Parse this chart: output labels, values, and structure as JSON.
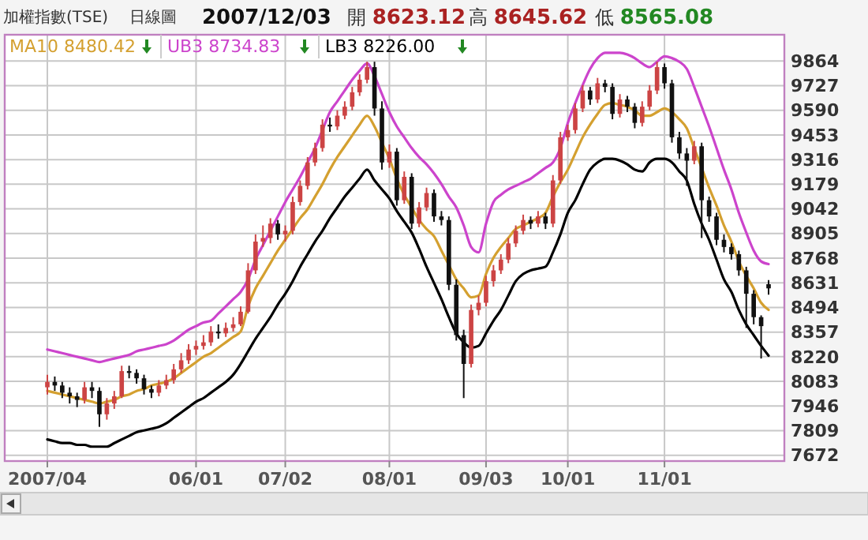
{
  "chart_data": {
    "type": "candlestick",
    "title": "加權指數(TSE)",
    "subtitle": "日線圖",
    "annotations": [
      "2007/12/03",
      "開 8623.12",
      "高 8645.62",
      "低 8565.08"
    ],
    "categories": [
      "2007/04",
      null,
      null,
      null,
      null,
      null,
      null,
      null,
      null,
      null,
      null,
      null,
      null,
      null,
      null,
      null,
      null,
      null,
      null,
      null,
      "06/01",
      null,
      null,
      null,
      null,
      null,
      null,
      null,
      null,
      null,
      null,
      null,
      "07/02",
      null,
      null,
      null,
      null,
      null,
      null,
      null,
      null,
      null,
      null,
      null,
      null,
      null,
      "08/01",
      null,
      null,
      null,
      null,
      null,
      null,
      null,
      null,
      null,
      null,
      null,
      null,
      "09/03",
      null,
      null,
      null,
      null,
      null,
      null,
      null,
      null,
      null,
      null,
      "10/01",
      null,
      null,
      null,
      null,
      null,
      null,
      null,
      null,
      null,
      null,
      null,
      null,
      "11/01",
      null,
      null,
      null,
      null,
      null,
      null,
      null,
      null,
      null,
      null,
      null,
      null,
      null,
      null
    ],
    "ylim": [
      7640,
      10010
    ],
    "yticks": [
      7672,
      7809,
      7946,
      8083,
      8220,
      8357,
      8494,
      8631,
      8768,
      8905,
      9042,
      9179,
      9316,
      9453,
      9590,
      9727,
      9864
    ],
    "grid": true,
    "legend": "top left",
    "series": [
      {
        "type": "line",
        "name": "UB3 8734.83",
        "color": "#cc44cc",
        "values": [
          8260,
          8250,
          8240,
          8230,
          8220,
          8210,
          8200,
          8190,
          8200,
          8210,
          8220,
          8230,
          8250,
          8260,
          8270,
          8280,
          8290,
          8310,
          8340,
          8370,
          8390,
          8410,
          8420,
          8460,
          8500,
          8540,
          8580,
          8650,
          8760,
          8840,
          8920,
          9000,
          9080,
          9150,
          9220,
          9300,
          9380,
          9480,
          9580,
          9640,
          9700,
          9760,
          9810,
          9850,
          9780,
          9680,
          9580,
          9500,
          9440,
          9380,
          9330,
          9290,
          9240,
          9180,
          9110,
          9050,
          8950,
          8830,
          8800,
          8960,
          9080,
          9120,
          9150,
          9170,
          9190,
          9210,
          9240,
          9270,
          9300,
          9380,
          9520,
          9630,
          9730,
          9820,
          9880,
          9910,
          9910,
          9910,
          9900,
          9880,
          9850,
          9830,
          9860,
          9890,
          9880,
          9860,
          9820,
          9720,
          9610,
          9500,
          9380,
          9260,
          9150,
          9020,
          8910,
          8810,
          8750,
          8734.83
        ]
      },
      {
        "type": "line",
        "name": "MA10 8480.42",
        "color": "#d4a030",
        "values": [
          8030,
          8020,
          8010,
          8000,
          7990,
          7980,
          7970,
          7960,
          7970,
          7980,
          8000,
          8010,
          8030,
          8040,
          8060,
          8070,
          8080,
          8100,
          8130,
          8160,
          8190,
          8220,
          8240,
          8270,
          8300,
          8330,
          8360,
          8500,
          8600,
          8670,
          8740,
          8810,
          8870,
          8930,
          8990,
          9040,
          9110,
          9180,
          9260,
          9330,
          9390,
          9450,
          9510,
          9560,
          9500,
          9410,
          9320,
          9210,
          9120,
          9050,
          8980,
          8930,
          8890,
          8810,
          8730,
          8650,
          8600,
          8550,
          8560,
          8680,
          8770,
          8830,
          8880,
          8930,
          8950,
          8970,
          8990,
          9020,
          9110,
          9190,
          9260,
          9350,
          9440,
          9510,
          9570,
          9620,
          9630,
          9620,
          9610,
          9590,
          9560,
          9560,
          9580,
          9600,
          9580,
          9540,
          9490,
          9380,
          9270,
          9160,
          9060,
          8950,
          8860,
          8750,
          8670,
          8600,
          8520,
          8480.42
        ]
      },
      {
        "type": "line",
        "name": "LB3 8226.00",
        "color": "#000000",
        "values": [
          7760,
          7750,
          7740,
          7740,
          7730,
          7730,
          7720,
          7720,
          7720,
          7740,
          7760,
          7780,
          7800,
          7810,
          7820,
          7830,
          7850,
          7880,
          7910,
          7940,
          7970,
          7990,
          8020,
          8050,
          8080,
          8120,
          8180,
          8250,
          8320,
          8380,
          8440,
          8510,
          8570,
          8640,
          8720,
          8790,
          8860,
          8920,
          8990,
          9050,
          9110,
          9160,
          9210,
          9260,
          9200,
          9150,
          9100,
          9030,
          8970,
          8910,
          8820,
          8720,
          8630,
          8540,
          8440,
          8350,
          8300,
          8270,
          8280,
          8350,
          8420,
          8480,
          8560,
          8640,
          8680,
          8700,
          8710,
          8720,
          8800,
          8900,
          9020,
          9090,
          9180,
          9260,
          9300,
          9320,
          9320,
          9310,
          9290,
          9260,
          9250,
          9300,
          9320,
          9320,
          9300,
          9250,
          9200,
          9070,
          8960,
          8870,
          8760,
          8650,
          8580,
          8480,
          8400,
          8340,
          8280,
          8226
        ]
      },
      {
        "colors": [
          "#cc4444",
          "#111111",
          "#111111",
          "#111111",
          "#111111",
          "#cc4444",
          "#111111",
          "#111111",
          "#cc4444",
          "#cc4444",
          "#cc4444",
          "#111111",
          "#111111",
          "#111111",
          "#111111",
          "#cc4444",
          "#cc4444",
          "#cc4444",
          "#cc4444",
          "#cc4444",
          "#cc4444",
          "#cc4444",
          "#cc4444",
          "#111111",
          "#cc4444",
          "#cc4444",
          "#cc4444",
          "#cc4444",
          "#cc4444",
          "#cc4444",
          "#cc4444",
          "#111111",
          "#cc4444",
          "#cc4444",
          "#cc4444",
          "#cc4444",
          "#cc4444",
          "#cc4444",
          "#111111",
          "#cc4444",
          "#cc4444",
          "#cc4444",
          "#cc4444",
          "#cc4444",
          "#111111",
          "#111111",
          "#cc4444",
          "#111111",
          "#cc4444",
          "#111111",
          "#cc4444",
          "#cc4444",
          "#111111",
          "#111111",
          "#111111",
          "#111111",
          "#111111",
          "#cc4444",
          "#cc4444",
          "#cc4444",
          "#cc4444",
          "#cc4444",
          "#cc4444",
          "#cc4444",
          "#cc4444",
          "#111111",
          "#cc4444",
          "#111111",
          "#cc4444",
          "#cc4444",
          "#cc4444",
          "#cc4444",
          "#cc4444",
          "#111111",
          "#cc4444",
          "#111111",
          "#111111",
          "#cc4444",
          "#111111",
          "#111111",
          "#cc4444",
          "#cc4444",
          "#cc4444",
          "#111111",
          "#111111",
          "#111111",
          "#111111",
          "#cc4444",
          "#111111",
          "#111111",
          "#111111",
          "#111111",
          "#111111",
          "#111111",
          "#111111",
          "#111111",
          "#111111",
          "#111111"
        ],
        "ohlc": [
          [
            8050,
            8120,
            8010,
            8080
          ],
          [
            8080,
            8110,
            8030,
            8060
          ],
          [
            8060,
            8080,
            7990,
            8020
          ],
          [
            8020,
            8050,
            7960,
            8000
          ],
          [
            8000,
            8020,
            7940,
            7980
          ],
          [
            7980,
            8080,
            7960,
            8050
          ],
          [
            8050,
            8080,
            7990,
            8030
          ],
          [
            8030,
            8050,
            7830,
            7900
          ],
          [
            7900,
            7990,
            7870,
            7960
          ],
          [
            7960,
            8030,
            7930,
            8000
          ],
          [
            8000,
            8170,
            7990,
            8140
          ],
          [
            8140,
            8170,
            8100,
            8130
          ],
          [
            8130,
            8150,
            8070,
            8100
          ],
          [
            8100,
            8120,
            8010,
            8040
          ],
          [
            8040,
            8060,
            7990,
            8020
          ],
          [
            8020,
            8090,
            8000,
            8060
          ],
          [
            8060,
            8120,
            8040,
            8090
          ],
          [
            8090,
            8180,
            8070,
            8150
          ],
          [
            8150,
            8240,
            8130,
            8200
          ],
          [
            8200,
            8290,
            8180,
            8260
          ],
          [
            8260,
            8310,
            8230,
            8280
          ],
          [
            8280,
            8340,
            8260,
            8300
          ],
          [
            8300,
            8390,
            8280,
            8360
          ],
          [
            8360,
            8400,
            8320,
            8350
          ],
          [
            8350,
            8410,
            8330,
            8380
          ],
          [
            8380,
            8440,
            8360,
            8400
          ],
          [
            8400,
            8500,
            8390,
            8470
          ],
          [
            8470,
            8740,
            8460,
            8700
          ],
          [
            8700,
            8900,
            8680,
            8860
          ],
          [
            8860,
            8950,
            8830,
            8880
          ],
          [
            8880,
            8990,
            8850,
            8960
          ],
          [
            8960,
            8980,
            8870,
            8900
          ],
          [
            8900,
            8950,
            8860,
            8920
          ],
          [
            8920,
            9110,
            8900,
            9080
          ],
          [
            9080,
            9200,
            9060,
            9170
          ],
          [
            9170,
            9330,
            9150,
            9300
          ],
          [
            9300,
            9410,
            9280,
            9380
          ],
          [
            9380,
            9540,
            9360,
            9510
          ],
          [
            9510,
            9550,
            9470,
            9500
          ],
          [
            9500,
            9590,
            9480,
            9560
          ],
          [
            9560,
            9640,
            9540,
            9610
          ],
          [
            9610,
            9720,
            9590,
            9690
          ],
          [
            9690,
            9790,
            9670,
            9760
          ],
          [
            9760,
            9860,
            9740,
            9830
          ],
          [
            9830,
            9860,
            9560,
            9600
          ],
          [
            9600,
            9640,
            9260,
            9300
          ],
          [
            9300,
            9400,
            9270,
            9360
          ],
          [
            9360,
            9380,
            9060,
            9090
          ],
          [
            9090,
            9250,
            9070,
            9220
          ],
          [
            9220,
            9240,
            8930,
            8960
          ],
          [
            8960,
            9080,
            8940,
            9050
          ],
          [
            9050,
            9160,
            9030,
            9130
          ],
          [
            9130,
            9150,
            8970,
            9000
          ],
          [
            9000,
            9030,
            8950,
            8980
          ],
          [
            8980,
            9000,
            8590,
            8620
          ],
          [
            8620,
            8650,
            8310,
            8340
          ],
          [
            8340,
            8370,
            7990,
            8180
          ],
          [
            8180,
            8510,
            8160,
            8480
          ],
          [
            8480,
            8560,
            8450,
            8520
          ],
          [
            8520,
            8670,
            8500,
            8640
          ],
          [
            8640,
            8730,
            8610,
            8700
          ],
          [
            8700,
            8790,
            8680,
            8760
          ],
          [
            8760,
            8880,
            8740,
            8850
          ],
          [
            8850,
            8950,
            8830,
            8920
          ],
          [
            8920,
            9010,
            8900,
            8980
          ],
          [
            8980,
            9000,
            8930,
            8960
          ],
          [
            8960,
            9030,
            8940,
            9000
          ],
          [
            9000,
            9020,
            8930,
            8960
          ],
          [
            8960,
            9230,
            8940,
            9200
          ],
          [
            9200,
            9470,
            9180,
            9440
          ],
          [
            9440,
            9510,
            9420,
            9480
          ],
          [
            9480,
            9630,
            9460,
            9600
          ],
          [
            9600,
            9730,
            9580,
            9700
          ],
          [
            9700,
            9720,
            9620,
            9650
          ],
          [
            9650,
            9770,
            9630,
            9740
          ],
          [
            9740,
            9760,
            9690,
            9720
          ],
          [
            9720,
            9740,
            9540,
            9570
          ],
          [
            9570,
            9680,
            9550,
            9650
          ],
          [
            9650,
            9670,
            9580,
            9610
          ],
          [
            9610,
            9630,
            9490,
            9520
          ],
          [
            9520,
            9640,
            9500,
            9610
          ],
          [
            9610,
            9730,
            9590,
            9700
          ],
          [
            9700,
            9860,
            9680,
            9830
          ],
          [
            9830,
            9850,
            9710,
            9740
          ],
          [
            9740,
            9760,
            9410,
            9440
          ],
          [
            9440,
            9470,
            9320,
            9350
          ],
          [
            9350,
            9380,
            9170,
            9310
          ],
          [
            9310,
            9420,
            9290,
            9390
          ],
          [
            9390,
            9410,
            8880,
            9090
          ],
          [
            9090,
            9110,
            8970,
            9000
          ],
          [
            9000,
            9020,
            8840,
            8870
          ],
          [
            8870,
            8900,
            8800,
            8830
          ],
          [
            8830,
            8850,
            8760,
            8790
          ],
          [
            8790,
            8810,
            8670,
            8700
          ],
          [
            8700,
            8720,
            8380,
            8570
          ],
          [
            8570,
            8590,
            8400,
            8440
          ],
          [
            8440,
            8450,
            8210,
            8390
          ],
          [
            8623.12,
            8645.62,
            8565.08,
            8600
          ]
        ]
      }
    ]
  }
}
